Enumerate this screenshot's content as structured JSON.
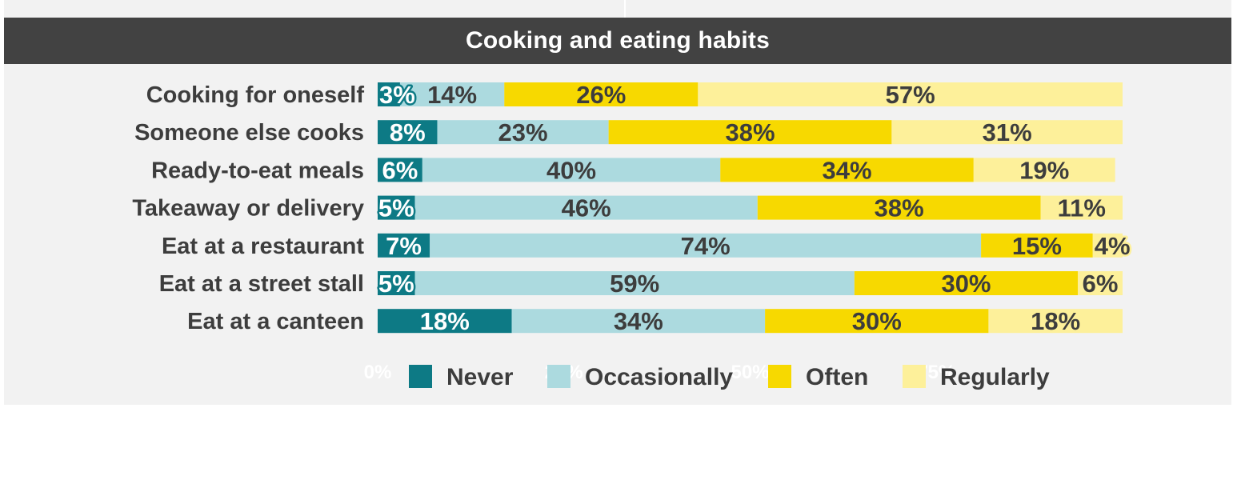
{
  "chart_data": {
    "type": "bar",
    "orientation": "horizontal",
    "stacked": true,
    "title": "Cooking and eating habits",
    "categories": [
      "Cooking for oneself",
      "Someone else cooks",
      "Ready-to-eat meals",
      "Takeaway or delivery",
      "Eat at a restaurant",
      "Eat at a street stall",
      "Eat at a canteen"
    ],
    "series": [
      {
        "name": "Never",
        "color": "#0d7a85",
        "label_color": "#ffffff",
        "halo_color": "#0d7a85",
        "values": [
          3,
          8,
          6,
          5,
          7,
          5,
          18
        ]
      },
      {
        "name": "Occasionally",
        "color": "#acdadf",
        "label_color": "#3d3d3d",
        "halo_color": "#acdadf",
        "values": [
          14,
          23,
          40,
          46,
          74,
          59,
          34
        ]
      },
      {
        "name": "Often",
        "color": "#f7d900",
        "label_color": "#3d3d3d",
        "halo_color": "#f7d900",
        "values": [
          26,
          38,
          34,
          38,
          15,
          30,
          30
        ]
      },
      {
        "name": "Regularly",
        "color": "#fdf09a",
        "label_color": "#3d3d3d",
        "halo_color": "#fdf09a",
        "values": [
          57,
          31,
          19,
          11,
          4,
          6,
          18
        ]
      }
    ],
    "value_suffix": "%",
    "xlim": [
      0,
      100
    ],
    "x_ticks": [
      "0%",
      "25%",
      "50%",
      "75%"
    ],
    "legend_position": "bottom",
    "grid": false
  }
}
